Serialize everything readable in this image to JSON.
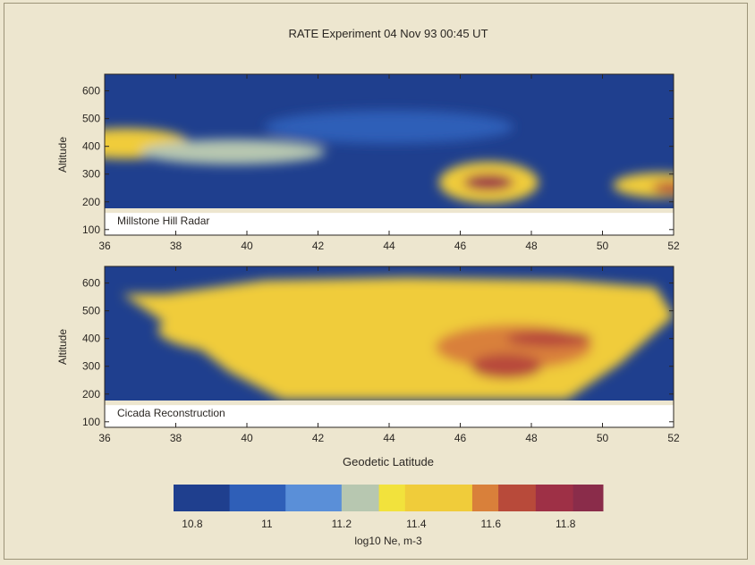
{
  "chart_data": [
    {
      "type": "heatmap",
      "title": "RATE Experiment    04 Nov 93  00:45 UT",
      "ylabel": "Altitude",
      "xlabel": "",
      "panel_label": "Millstone Hill Radar",
      "xlim": [
        36,
        52
      ],
      "ylim": [
        80,
        660
      ],
      "x_ticks": [
        "36",
        "38",
        "40",
        "42",
        "44",
        "46",
        "48",
        "50",
        "52"
      ],
      "y_ticks": [
        "100",
        "200",
        "300",
        "400",
        "500",
        "600"
      ],
      "data_yrange": [
        160,
        660
      ],
      "blobs": [
        {
          "x": 36.6,
          "y": 410,
          "rx": 1.8,
          "ry": 55,
          "v": 11.45
        },
        {
          "x": 39.6,
          "y": 380,
          "rx": 2.6,
          "ry": 45,
          "v": 11.25
        },
        {
          "x": 46.8,
          "y": 270,
          "rx": 1.4,
          "ry": 75,
          "v": 11.55
        },
        {
          "x": 46.8,
          "y": 270,
          "rx": 0.7,
          "ry": 30,
          "v": 11.78
        },
        {
          "x": 51.6,
          "y": 260,
          "rx": 1.3,
          "ry": 45,
          "v": 11.5
        },
        {
          "x": 51.9,
          "y": 250,
          "rx": 0.5,
          "ry": 22,
          "v": 11.72
        },
        {
          "x": 44.0,
          "y": 470,
          "rx": 3.5,
          "ry": 60,
          "v": 11.02
        }
      ],
      "background_value": 10.85
    },
    {
      "type": "heatmap",
      "title": "",
      "ylabel": "Altitude",
      "xlabel": "Geodetic Latitude",
      "panel_label": "Cicada Reconstruction",
      "xlim": [
        36,
        52
      ],
      "ylim": [
        80,
        660
      ],
      "x_ticks": [
        "36",
        "38",
        "40",
        "42",
        "44",
        "46",
        "48",
        "50",
        "52"
      ],
      "y_ticks": [
        "100",
        "200",
        "300",
        "400",
        "500",
        "600"
      ],
      "data_yrange": [
        160,
        660
      ],
      "coverage_polygon": [
        [
          37.7,
          560
        ],
        [
          40.5,
          610
        ],
        [
          44.5,
          620
        ],
        [
          49.0,
          610
        ],
        [
          51.5,
          585
        ],
        [
          52,
          480
        ],
        [
          50.5,
          310
        ],
        [
          49.0,
          180
        ],
        [
          41.0,
          180
        ],
        [
          39.5,
          280
        ],
        [
          38.0,
          430
        ],
        [
          36.5,
          560
        ]
      ],
      "blobs": [
        {
          "x": 42.5,
          "y": 430,
          "rx": 5.0,
          "ry": 110,
          "v": 11.45
        },
        {
          "x": 47.5,
          "y": 370,
          "rx": 2.2,
          "ry": 80,
          "v": 11.62
        },
        {
          "x": 47.3,
          "y": 300,
          "rx": 1.0,
          "ry": 45,
          "v": 11.72
        },
        {
          "x": 48.5,
          "y": 400,
          "rx": 1.2,
          "ry": 30,
          "v": 11.65
        }
      ],
      "fill_value": 11.42,
      "background_value": 10.85
    }
  ],
  "colorbar": {
    "label": "log10 Ne, m-3",
    "range": [
      10.75,
      11.9
    ],
    "ticks": [
      "10.8",
      "11",
      "11.2",
      "11.4",
      "11.6",
      "11.8"
    ],
    "stops": [
      {
        "v": 10.75,
        "color": "#1c2a5c"
      },
      {
        "v": 10.9,
        "color": "#1f3f8e"
      },
      {
        "v": 11.05,
        "color": "#2f5fb8"
      },
      {
        "v": 11.2,
        "color": "#5a8fd8"
      },
      {
        "v": 11.3,
        "color": "#b7c7b0"
      },
      {
        "v": 11.37,
        "color": "#f2e23c"
      },
      {
        "v": 11.55,
        "color": "#f0cc3a"
      },
      {
        "v": 11.62,
        "color": "#d9803a"
      },
      {
        "v": 11.72,
        "color": "#b84a3a"
      },
      {
        "v": 11.82,
        "color": "#9e3046"
      },
      {
        "v": 11.9,
        "color": "#8a2c4a"
      }
    ]
  }
}
